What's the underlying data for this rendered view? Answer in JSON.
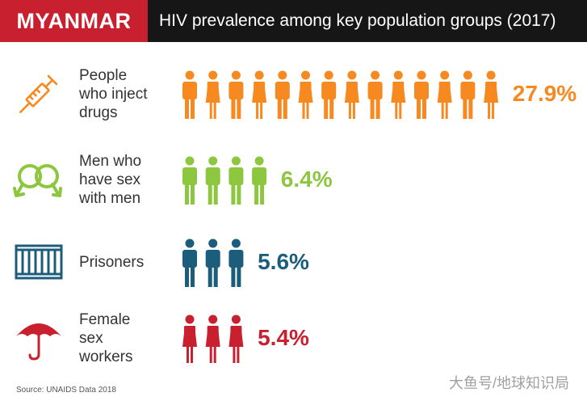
{
  "header": {
    "country": "MYANMAR",
    "title": "HIV prevalence among key population groups (2017)"
  },
  "chart_data": {
    "type": "bar",
    "title": "HIV prevalence among key population groups (2017)",
    "unit": "%",
    "categories": [
      "People who inject drugs",
      "Men who have sex with men",
      "Prisoners",
      "Female sex workers"
    ],
    "values": [
      27.9,
      6.4,
      5.6,
      5.4
    ],
    "value_labels": [
      "27.9%",
      "6.4%",
      "5.6%",
      "5.4%"
    ],
    "figure_counts": [
      14,
      4,
      3,
      3
    ]
  },
  "rows": [
    {
      "label": "People\nwho inject\ndrugs",
      "value_label": "27.9%",
      "color": "#f6891f",
      "icon": "syringe-icon",
      "figures": 14
    },
    {
      "label": "Men who\nhave sex\nwith men",
      "value_label": "6.4%",
      "color": "#8dc63f",
      "icon": "male-symbols-icon",
      "figures": 4
    },
    {
      "label": "Prisoners",
      "value_label": "5.6%",
      "color": "#1c5d7c",
      "icon": "prison-bars-icon",
      "figures": 3
    },
    {
      "label": "Female\nsex\nworkers",
      "value_label": "5.4%",
      "color": "#c8202f",
      "icon": "umbrella-icon",
      "figures": 3
    }
  ],
  "source": "Source: UNAIDS Data 2018",
  "watermark": "大鱼号/地球知识局"
}
